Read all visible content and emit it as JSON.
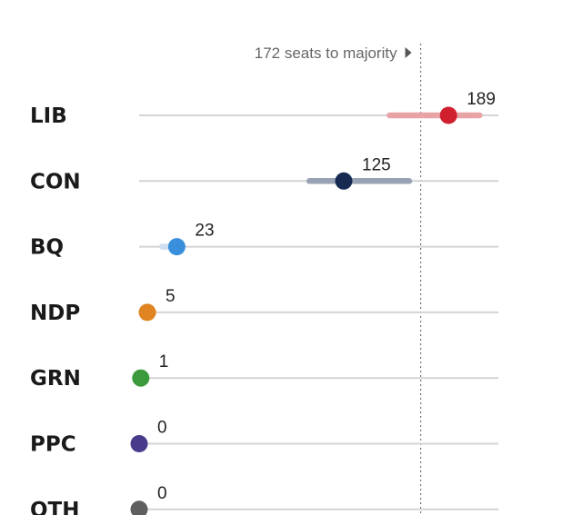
{
  "chart_data": {
    "type": "scatter",
    "majority": {
      "label": "172 seats to majority",
      "value": 172,
      "arrow_icon": "triangle-right-icon"
    },
    "x_range": [
      0,
      220
    ],
    "parties": [
      {
        "name": "LIB",
        "value": 189,
        "label": "189",
        "range": [
          153,
          208
        ],
        "color": "#d0202e",
        "range_color": "#e8a3a6"
      },
      {
        "name": "CON",
        "value": 125,
        "label": "125",
        "range": [
          104,
          165
        ],
        "color": "#172a52",
        "range_color": "#9aa3b5"
      },
      {
        "name": "BQ",
        "value": 23,
        "label": "23",
        "range": [
          14,
          25
        ],
        "color": "#3a8fdc",
        "range_color": "#cfdfef"
      },
      {
        "name": "NDP",
        "value": 5,
        "label": "5",
        "range": [
          3,
          9
        ],
        "color": "#e08421",
        "range_color": "#f4c89a"
      },
      {
        "name": "GRN",
        "value": 1,
        "label": "1",
        "range": [
          0,
          2
        ],
        "color": "#3c9a3c",
        "range_color": "#b8dcb8"
      },
      {
        "name": "PPC",
        "value": 0,
        "label": "0",
        "range": [
          0,
          1
        ],
        "color": "#4a3a8c",
        "range_color": "#c4bde0"
      },
      {
        "name": "OTH",
        "value": 0,
        "label": "0",
        "range": [
          0,
          1
        ],
        "color": "#5e5e5e",
        "range_color": "#c8c8c8"
      }
    ],
    "grid": false,
    "colors": {
      "track": "#d4d4d4",
      "majority_line": "#777777"
    }
  }
}
